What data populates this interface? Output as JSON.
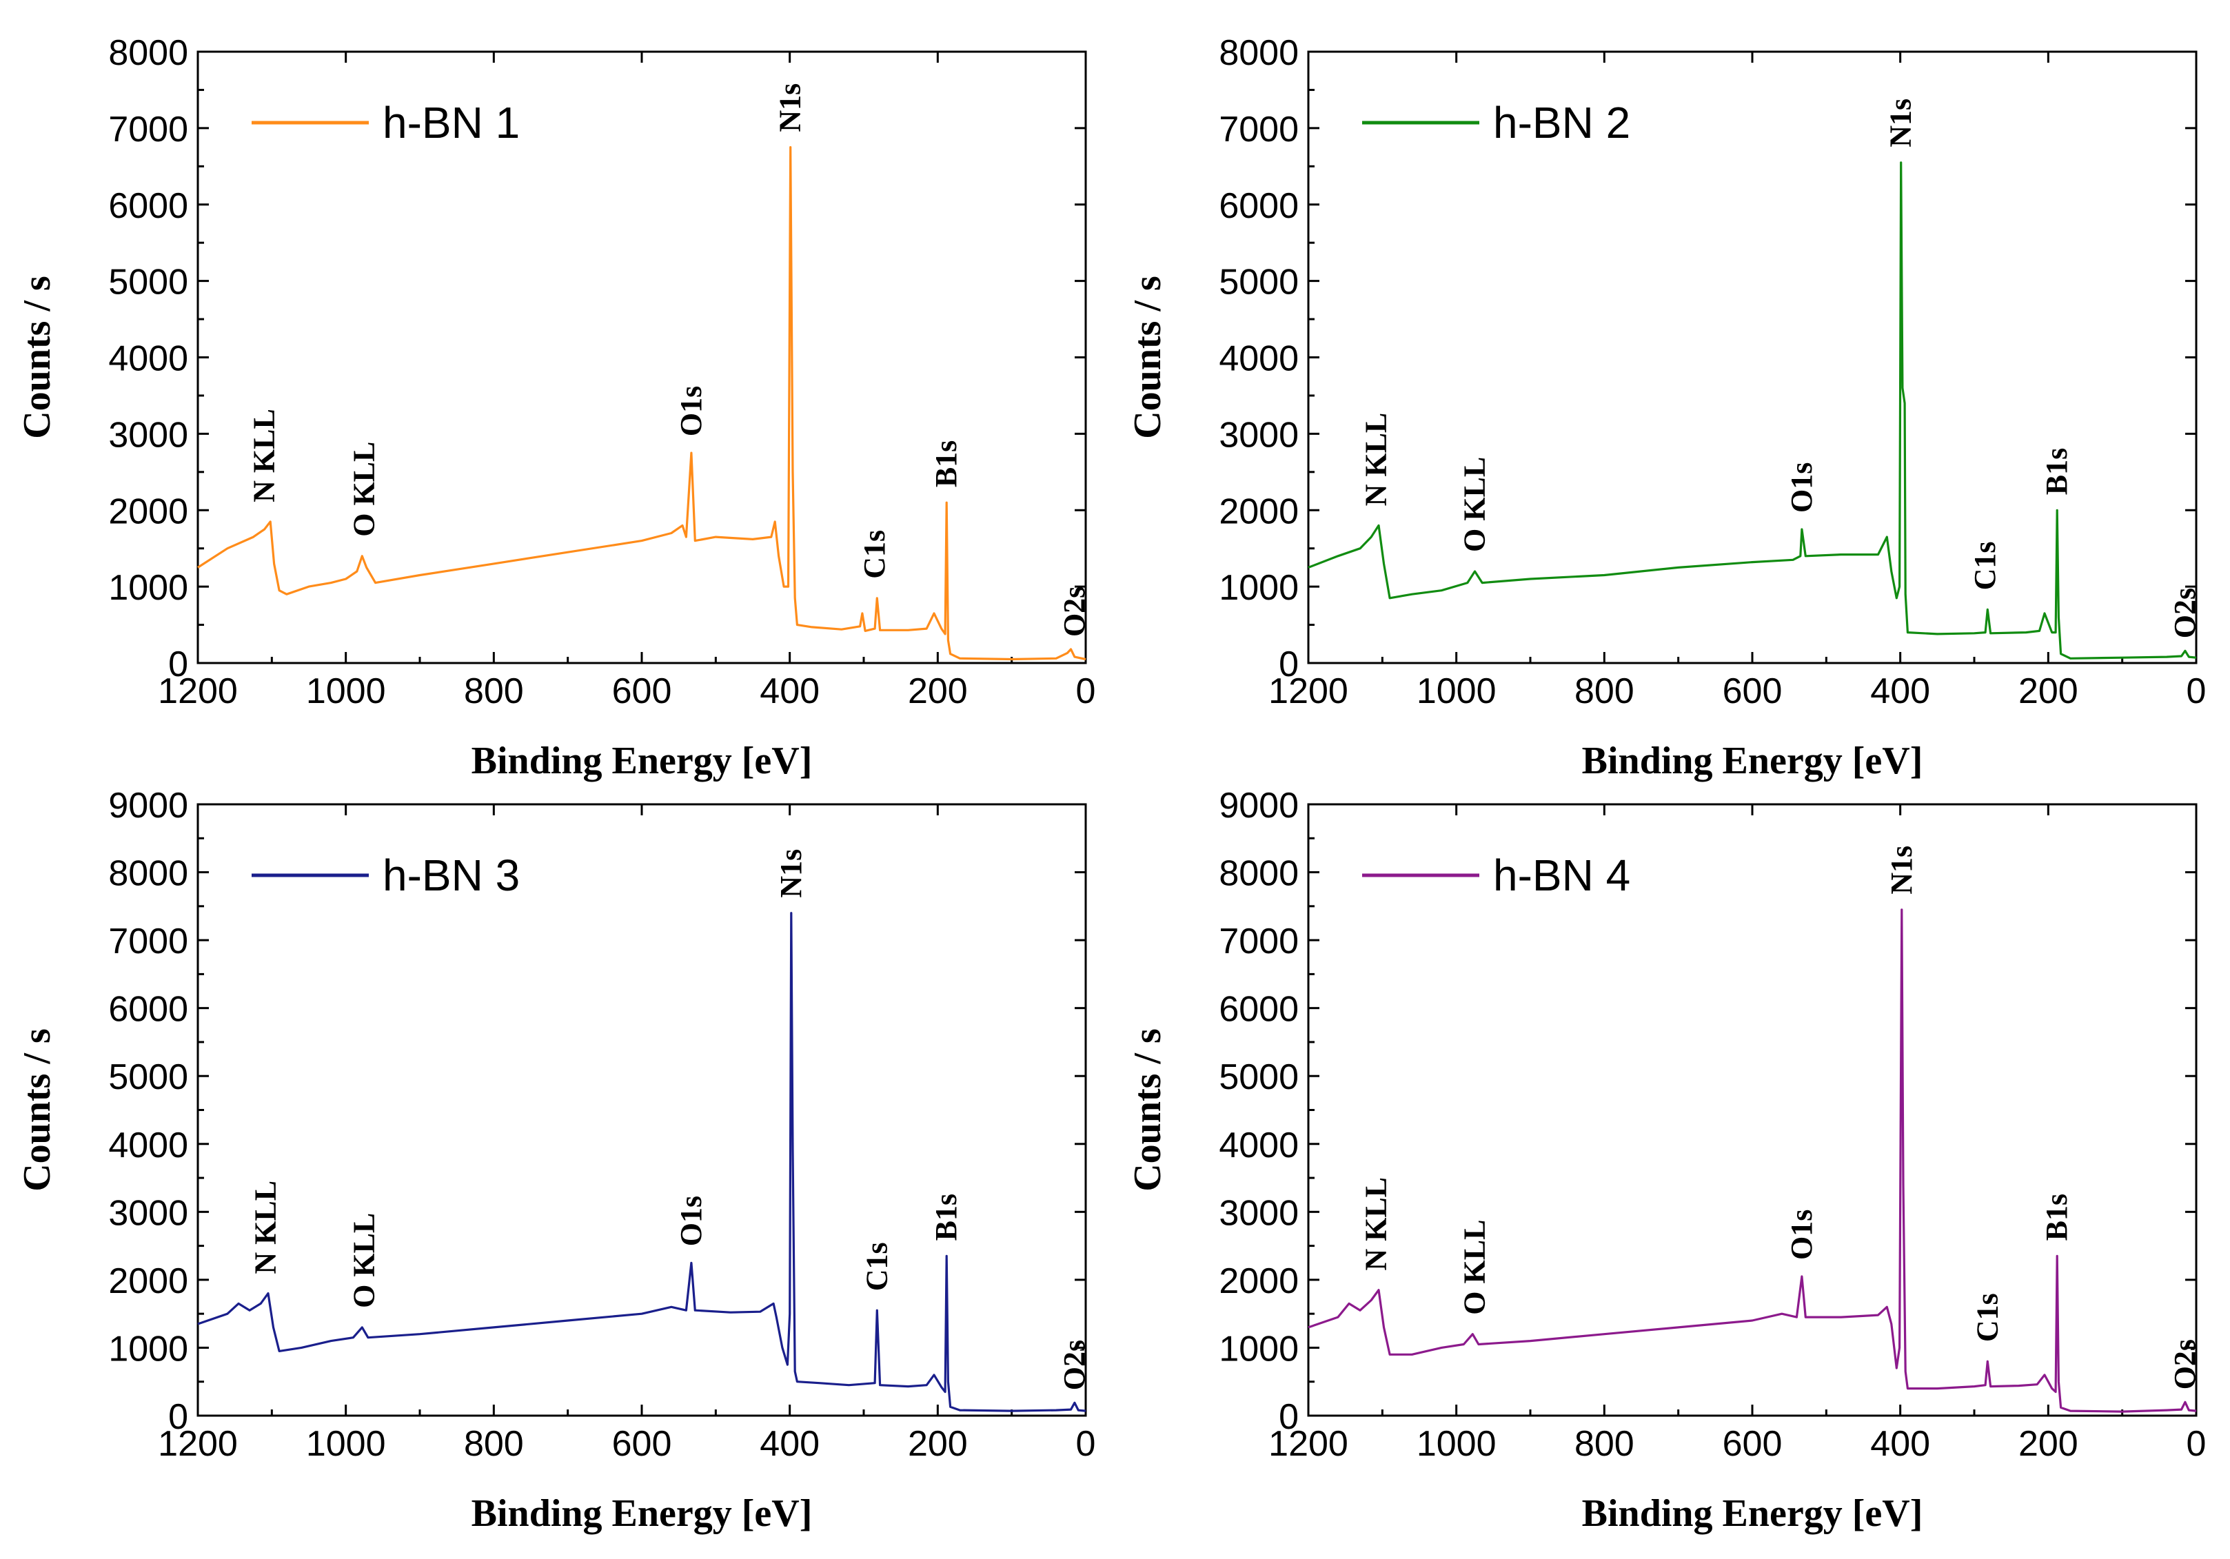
{
  "chart_data": [
    {
      "type": "line",
      "legend": "h-BN 1",
      "color": "#ff8c1a",
      "xlabel": "Binding Energy [eV]",
      "ylabel": "Counts / s",
      "xlim": [
        1200,
        0
      ],
      "ylim": [
        0,
        8000
      ],
      "xticks": [
        "1200",
        "1000",
        "800",
        "600",
        "400",
        "200",
        "0"
      ],
      "yticks": [
        "0",
        "1000",
        "2000",
        "3000",
        "4000",
        "5000",
        "6000",
        "7000",
        "8000"
      ],
      "legend_position": "top-left",
      "points": [
        [
          1200,
          1250
        ],
        [
          1160,
          1500
        ],
        [
          1125,
          1650
        ],
        [
          1110,
          1750
        ],
        [
          1102,
          1850
        ],
        [
          1097,
          1300
        ],
        [
          1090,
          950
        ],
        [
          1080,
          900
        ],
        [
          1050,
          1000
        ],
        [
          1020,
          1050
        ],
        [
          1000,
          1100
        ],
        [
          985,
          1200
        ],
        [
          978,
          1400
        ],
        [
          972,
          1250
        ],
        [
          960,
          1050
        ],
        [
          900,
          1150
        ],
        [
          800,
          1300
        ],
        [
          700,
          1450
        ],
        [
          600,
          1600
        ],
        [
          560,
          1700
        ],
        [
          545,
          1800
        ],
        [
          540,
          1650
        ],
        [
          533,
          2750
        ],
        [
          528,
          1600
        ],
        [
          500,
          1650
        ],
        [
          450,
          1620
        ],
        [
          425,
          1650
        ],
        [
          420,
          1850
        ],
        [
          415,
          1400
        ],
        [
          408,
          1000
        ],
        [
          402,
          1000
        ],
        [
          399,
          6750
        ],
        [
          396,
          2500
        ],
        [
          393,
          850
        ],
        [
          390,
          500
        ],
        [
          370,
          470
        ],
        [
          330,
          440
        ],
        [
          305,
          480
        ],
        [
          302,
          650
        ],
        [
          298,
          420
        ],
        [
          285,
          450
        ],
        [
          282,
          850
        ],
        [
          278,
          430
        ],
        [
          240,
          430
        ],
        [
          215,
          450
        ],
        [
          205,
          650
        ],
        [
          195,
          450
        ],
        [
          190,
          380
        ],
        [
          188,
          2100
        ],
        [
          186,
          300
        ],
        [
          183,
          120
        ],
        [
          170,
          60
        ],
        [
          100,
          50
        ],
        [
          40,
          60
        ],
        [
          25,
          130
        ],
        [
          20,
          180
        ],
        [
          15,
          80
        ],
        [
          0,
          50
        ]
      ],
      "annotations": [
        {
          "text": "N KLL",
          "x": 1110
        },
        {
          "text": "O KLL",
          "x": 975
        },
        {
          "text": "O1s",
          "x": 533
        },
        {
          "text": "N1s",
          "x": 399
        },
        {
          "text": "C1s",
          "x": 285
        },
        {
          "text": "B1s",
          "x": 188
        },
        {
          "text": "O2s",
          "x": 15
        }
      ]
    },
    {
      "type": "line",
      "legend": "h-BN 2",
      "color": "#118c11",
      "xlabel": "Binding Energy [eV]",
      "ylabel": "Counts / s",
      "xlim": [
        1200,
        0
      ],
      "ylim": [
        0,
        8000
      ],
      "xticks": [
        "1200",
        "1000",
        "800",
        "600",
        "400",
        "200",
        "0"
      ],
      "yticks": [
        "0",
        "1000",
        "2000",
        "3000",
        "4000",
        "5000",
        "6000",
        "7000",
        "8000"
      ],
      "legend_position": "top-left",
      "points": [
        [
          1200,
          1250
        ],
        [
          1160,
          1400
        ],
        [
          1130,
          1500
        ],
        [
          1115,
          1650
        ],
        [
          1105,
          1800
        ],
        [
          1098,
          1300
        ],
        [
          1090,
          850
        ],
        [
          1060,
          900
        ],
        [
          1020,
          950
        ],
        [
          985,
          1050
        ],
        [
          975,
          1200
        ],
        [
          965,
          1050
        ],
        [
          900,
          1100
        ],
        [
          800,
          1150
        ],
        [
          700,
          1250
        ],
        [
          600,
          1320
        ],
        [
          545,
          1350
        ],
        [
          535,
          1400
        ],
        [
          533,
          1750
        ],
        [
          528,
          1400
        ],
        [
          480,
          1420
        ],
        [
          430,
          1420
        ],
        [
          418,
          1650
        ],
        [
          412,
          1200
        ],
        [
          405,
          850
        ],
        [
          401,
          1000
        ],
        [
          399,
          6550
        ],
        [
          397,
          3600
        ],
        [
          394,
          3400
        ],
        [
          393,
          900
        ],
        [
          390,
          400
        ],
        [
          350,
          380
        ],
        [
          300,
          390
        ],
        [
          285,
          400
        ],
        [
          282,
          700
        ],
        [
          278,
          390
        ],
        [
          230,
          400
        ],
        [
          212,
          420
        ],
        [
          205,
          650
        ],
        [
          195,
          400
        ],
        [
          190,
          400
        ],
        [
          188,
          2000
        ],
        [
          186,
          600
        ],
        [
          183,
          120
        ],
        [
          170,
          60
        ],
        [
          100,
          70
        ],
        [
          40,
          80
        ],
        [
          20,
          90
        ],
        [
          15,
          160
        ],
        [
          10,
          80
        ],
        [
          0,
          70
        ]
      ],
      "annotations": [
        {
          "text": "N KLL",
          "x": 1108
        },
        {
          "text": "O KLL",
          "x": 975
        },
        {
          "text": "O1s",
          "x": 533
        },
        {
          "text": "N1s",
          "x": 399
        },
        {
          "text": "C1s",
          "x": 285
        },
        {
          "text": "B1s",
          "x": 188
        },
        {
          "text": "O2s",
          "x": 15
        }
      ]
    },
    {
      "type": "line",
      "legend": "h-BN 3",
      "color": "#1a1f8c",
      "xlabel": "Binding Energy [eV]",
      "ylabel": "Counts / s",
      "xlim": [
        1200,
        0
      ],
      "ylim": [
        0,
        9000
      ],
      "xticks": [
        "1200",
        "1000",
        "800",
        "600",
        "400",
        "200",
        "0"
      ],
      "yticks": [
        "0",
        "1000",
        "2000",
        "3000",
        "4000",
        "5000",
        "6000",
        "7000",
        "8000",
        "9000"
      ],
      "legend_position": "top-left",
      "points": [
        [
          1200,
          1350
        ],
        [
          1160,
          1500
        ],
        [
          1145,
          1650
        ],
        [
          1130,
          1550
        ],
        [
          1115,
          1650
        ],
        [
          1105,
          1800
        ],
        [
          1098,
          1300
        ],
        [
          1090,
          950
        ],
        [
          1060,
          1000
        ],
        [
          1020,
          1100
        ],
        [
          990,
          1150
        ],
        [
          978,
          1300
        ],
        [
          970,
          1150
        ],
        [
          900,
          1200
        ],
        [
          800,
          1300
        ],
        [
          700,
          1400
        ],
        [
          600,
          1500
        ],
        [
          560,
          1600
        ],
        [
          540,
          1550
        ],
        [
          533,
          2250
        ],
        [
          528,
          1550
        ],
        [
          480,
          1520
        ],
        [
          440,
          1530
        ],
        [
          422,
          1650
        ],
        [
          418,
          1450
        ],
        [
          410,
          1000
        ],
        [
          403,
          750
        ],
        [
          400,
          1500
        ],
        [
          398,
          7400
        ],
        [
          396,
          3900
        ],
        [
          393,
          650
        ],
        [
          390,
          500
        ],
        [
          360,
          480
        ],
        [
          320,
          450
        ],
        [
          285,
          480
        ],
        [
          282,
          1550
        ],
        [
          278,
          450
        ],
        [
          240,
          430
        ],
        [
          215,
          450
        ],
        [
          205,
          600
        ],
        [
          195,
          420
        ],
        [
          190,
          350
        ],
        [
          188,
          2350
        ],
        [
          186,
          500
        ],
        [
          183,
          130
        ],
        [
          170,
          80
        ],
        [
          100,
          70
        ],
        [
          40,
          80
        ],
        [
          20,
          90
        ],
        [
          15,
          190
        ],
        [
          10,
          80
        ],
        [
          0,
          70
        ]
      ],
      "annotations": [
        {
          "text": "N KLL",
          "x": 1108
        },
        {
          "text": "O KLL",
          "x": 975
        },
        {
          "text": "O1s",
          "x": 533
        },
        {
          "text": "N1s",
          "x": 398
        },
        {
          "text": "C1s",
          "x": 282
        },
        {
          "text": "B1s",
          "x": 188
        },
        {
          "text": "O2s",
          "x": 15
        }
      ]
    },
    {
      "type": "line",
      "legend": "h-BN 4",
      "color": "#8c1a8c",
      "xlabel": "Binding Energy [eV]",
      "ylabel": "Counts / s",
      "xlim": [
        1200,
        0
      ],
      "ylim": [
        0,
        9000
      ],
      "xticks": [
        "1200",
        "1000",
        "800",
        "600",
        "400",
        "200",
        "0"
      ],
      "yticks": [
        "0",
        "1000",
        "2000",
        "3000",
        "4000",
        "5000",
        "6000",
        "7000",
        "8000",
        "9000"
      ],
      "legend_position": "top-left",
      "points": [
        [
          1200,
          1300
        ],
        [
          1160,
          1450
        ],
        [
          1145,
          1650
        ],
        [
          1130,
          1550
        ],
        [
          1115,
          1700
        ],
        [
          1105,
          1850
        ],
        [
          1098,
          1300
        ],
        [
          1090,
          900
        ],
        [
          1060,
          900
        ],
        [
          1020,
          1000
        ],
        [
          990,
          1050
        ],
        [
          978,
          1200
        ],
        [
          970,
          1050
        ],
        [
          900,
          1100
        ],
        [
          800,
          1200
        ],
        [
          700,
          1300
        ],
        [
          600,
          1400
        ],
        [
          560,
          1500
        ],
        [
          540,
          1450
        ],
        [
          533,
          2050
        ],
        [
          528,
          1450
        ],
        [
          480,
          1450
        ],
        [
          430,
          1480
        ],
        [
          418,
          1600
        ],
        [
          412,
          1350
        ],
        [
          405,
          700
        ],
        [
          401,
          1000
        ],
        [
          398,
          7450
        ],
        [
          396,
          3400
        ],
        [
          393,
          650
        ],
        [
          390,
          400
        ],
        [
          350,
          400
        ],
        [
          300,
          430
        ],
        [
          285,
          450
        ],
        [
          282,
          800
        ],
        [
          278,
          430
        ],
        [
          240,
          440
        ],
        [
          215,
          460
        ],
        [
          205,
          600
        ],
        [
          195,
          400
        ],
        [
          190,
          350
        ],
        [
          188,
          2350
        ],
        [
          186,
          500
        ],
        [
          183,
          120
        ],
        [
          170,
          70
        ],
        [
          100,
          60
        ],
        [
          40,
          80
        ],
        [
          20,
          90
        ],
        [
          15,
          200
        ],
        [
          10,
          80
        ],
        [
          0,
          70
        ]
      ],
      "annotations": [
        {
          "text": "N KLL",
          "x": 1108
        },
        {
          "text": "O KLL",
          "x": 975
        },
        {
          "text": "O1s",
          "x": 533
        },
        {
          "text": "N1s",
          "x": 398
        },
        {
          "text": "C1s",
          "x": 282
        },
        {
          "text": "B1s",
          "x": 188
        },
        {
          "text": "O2s",
          "x": 15
        }
      ]
    }
  ]
}
